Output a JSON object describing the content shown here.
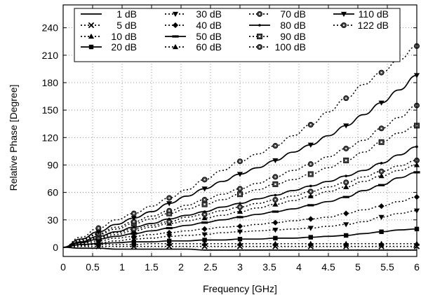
{
  "chart_data": {
    "type": "line",
    "xlabel": "Frequency [GHz]",
    "ylabel": "Relative Phase [Degree]",
    "xlim": [
      0,
      6
    ],
    "ylim": [
      -10,
      265
    ],
    "xticks": [
      0,
      0.5,
      1,
      1.5,
      2,
      2.5,
      3,
      3.5,
      4,
      4.5,
      5,
      5.5,
      6
    ],
    "yticks": [
      0,
      30,
      60,
      90,
      120,
      150,
      180,
      210,
      240
    ],
    "grid": true,
    "legend_position": "top",
    "x": [
      0,
      0.3,
      0.6,
      0.9,
      1.2,
      1.5,
      1.8,
      2.1,
      2.4,
      2.7,
      3.0,
      3.3,
      3.6,
      3.9,
      4.2,
      4.5,
      4.8,
      5.1,
      5.4,
      5.7,
      6.0
    ],
    "series": [
      {
        "name": "1 dB",
        "style": "solid",
        "marker": "none",
        "values": [
          0,
          -1,
          -1,
          -2,
          -2,
          -2,
          -2,
          -2,
          -3,
          -3,
          -3,
          -3,
          -3,
          -3,
          -3,
          -3,
          -3,
          -3,
          -3,
          -3,
          -3
        ]
      },
      {
        "name": "5 dB",
        "style": "dotted",
        "marker": "x",
        "values": [
          0,
          1,
          1,
          1,
          1,
          1,
          1,
          1,
          1,
          1,
          1,
          1,
          1,
          1,
          1,
          1,
          1,
          1,
          1,
          1,
          1
        ]
      },
      {
        "name": "10 dB",
        "style": "dotted",
        "marker": "triangle-up",
        "values": [
          0,
          2,
          3,
          3,
          3,
          4,
          4,
          4,
          4,
          4,
          4,
          4,
          4,
          4,
          4,
          4,
          4,
          4,
          4,
          4,
          4
        ]
      },
      {
        "name": "20 dB",
        "style": "solid",
        "marker": "square",
        "values": [
          0,
          3,
          4,
          5,
          6,
          6,
          7,
          7,
          8,
          8,
          9,
          9,
          10,
          10,
          11,
          12,
          13,
          15,
          17,
          19,
          20
        ]
      },
      {
        "name": "30 dB",
        "style": "dotted",
        "marker": "triangle-down",
        "values": [
          0,
          3,
          5,
          7,
          9,
          10,
          12,
          13,
          14,
          16,
          17,
          18,
          19,
          20,
          21,
          23,
          25,
          28,
          33,
          37,
          40
        ]
      },
      {
        "name": "40 dB",
        "style": "dotted",
        "marker": "diamond",
        "values": [
          0,
          4,
          7,
          10,
          12,
          14,
          16,
          18,
          20,
          22,
          23,
          25,
          27,
          29,
          31,
          33,
          37,
          41,
          45,
          50,
          55
        ]
      },
      {
        "name": "50 dB",
        "style": "solid",
        "marker": "hline",
        "values": [
          0,
          5,
          9,
          12,
          15,
          18,
          21,
          24,
          27,
          30,
          33,
          36,
          39,
          42,
          46,
          50,
          55,
          62,
          68,
          76,
          82
        ]
      },
      {
        "name": "60 dB",
        "style": "dotted",
        "marker": "triangle-up",
        "values": [
          0,
          5,
          10,
          14,
          18,
          22,
          26,
          29,
          32,
          35,
          39,
          43,
          47,
          51,
          56,
          61,
          66,
          72,
          78,
          84,
          90
        ]
      },
      {
        "name": "70 dB",
        "style": "dotted",
        "marker": "circle-dot",
        "values": [
          0,
          6,
          11,
          16,
          20,
          24,
          28,
          33,
          36,
          40,
          44,
          48,
          52,
          56,
          61,
          66,
          71,
          77,
          83,
          89,
          95
        ]
      },
      {
        "name": "80 dB",
        "style": "solid",
        "marker": "dot",
        "values": [
          0,
          6,
          12,
          17,
          22,
          26,
          31,
          35,
          39,
          44,
          48,
          53,
          57,
          62,
          67,
          72,
          78,
          84,
          92,
          101,
          110
        ]
      },
      {
        "name": "90 dB",
        "style": "dotted",
        "marker": "square-dot",
        "values": [
          0,
          7,
          14,
          20,
          26,
          31,
          37,
          42,
          47,
          52,
          58,
          63,
          69,
          74,
          80,
          87,
          95,
          104,
          115,
          125,
          133
        ]
      },
      {
        "name": "100 dB",
        "style": "dotted",
        "marker": "circle-dot",
        "values": [
          0,
          8,
          15,
          22,
          28,
          34,
          40,
          46,
          52,
          58,
          64,
          70,
          77,
          84,
          91,
          99,
          108,
          117,
          130,
          142,
          155
        ]
      },
      {
        "name": "110 dB",
        "style": "solid",
        "marker": "triangle-down",
        "values": [
          0,
          9,
          17,
          25,
          32,
          39,
          48,
          56,
          64,
          72,
          80,
          87,
          95,
          104,
          112,
          122,
          133,
          145,
          158,
          172,
          188
        ]
      },
      {
        "name": "122 dB",
        "style": "dotted",
        "marker": "circle-dot",
        "values": [
          0,
          11,
          21,
          30,
          37,
          45,
          54,
          63,
          74,
          84,
          94,
          102,
          111,
          122,
          134,
          148,
          163,
          178,
          191,
          205,
          220
        ]
      }
    ]
  }
}
